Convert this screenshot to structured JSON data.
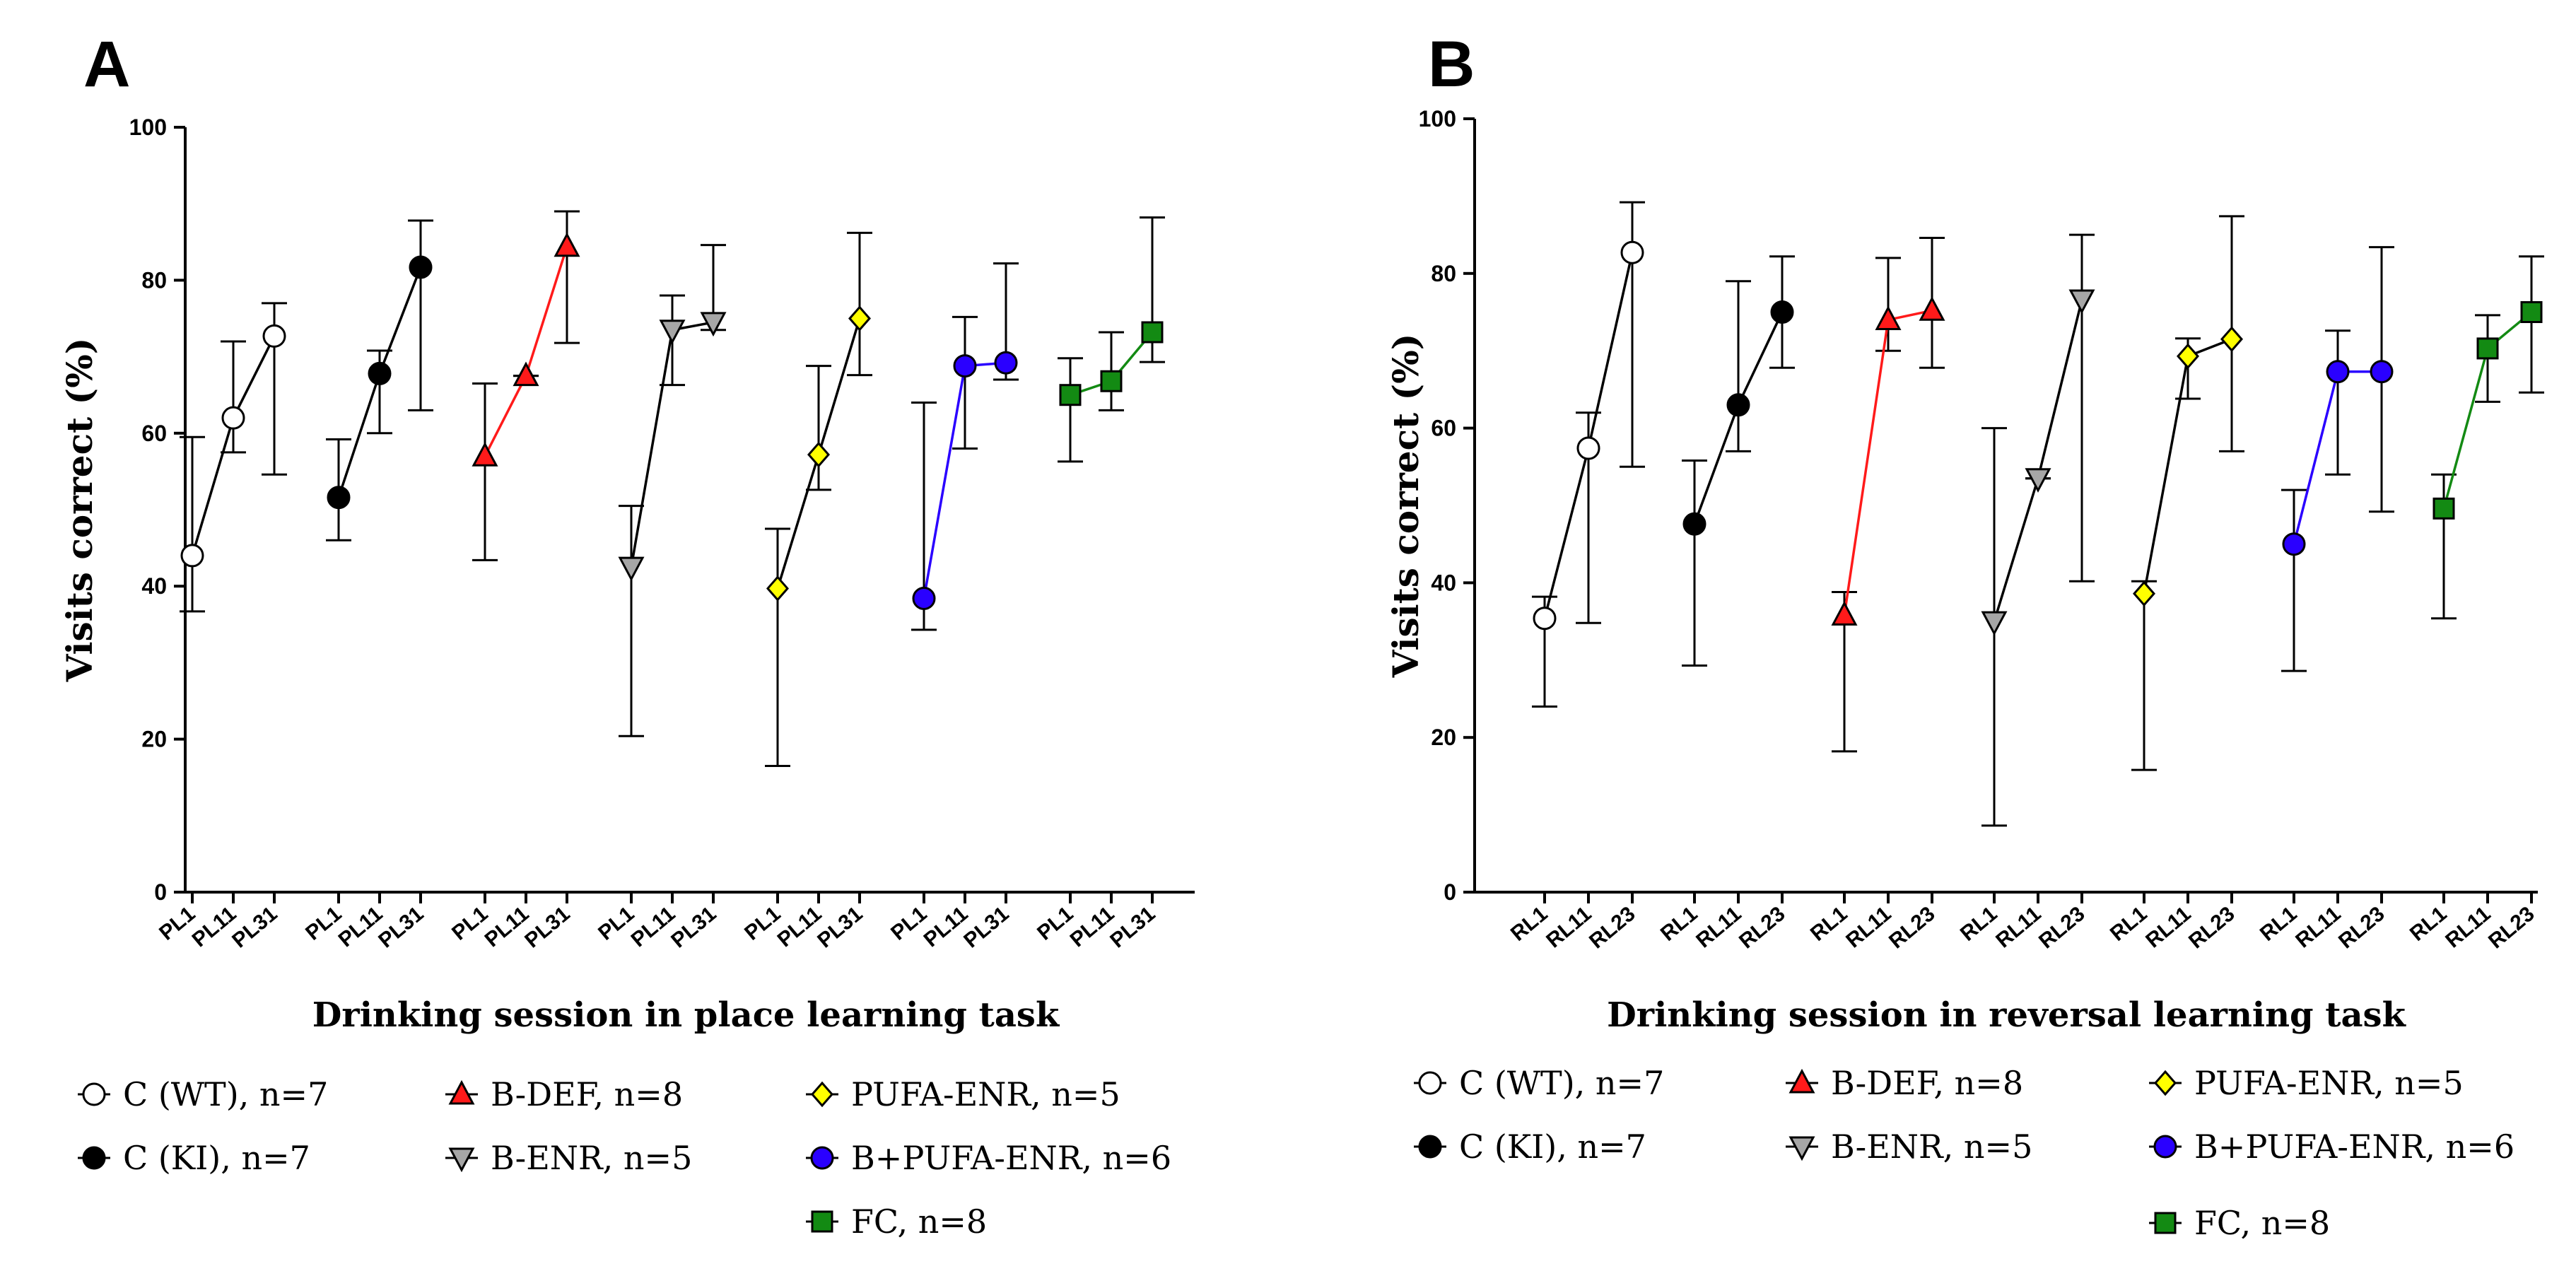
{
  "colors": {
    "C (WT)": "#ffffff",
    "C (KI)": "#000000",
    "B-DEF": "#ff1a1a",
    "B-ENR": "#a6a6a6",
    "PUFA-ENR": "#ffff00",
    "B+PUFA-ENR": "#2a00ff",
    "FC": "#138a13",
    "line_default": "#000000",
    "line_B-DEF": "#ff1a1a",
    "line_B+PUFA-ENR": "#2a00ff",
    "line_FC": "#138a13"
  },
  "chart_data": [
    {
      "panel": "A",
      "type": "line",
      "ylabel": "Visits correct (%)",
      "xlabel": "Drinking session in place learning task",
      "ylim": [
        0,
        100
      ],
      "yticks": [
        "0",
        "20",
        "40",
        "60",
        "80",
        "100"
      ],
      "session_labels": [
        "PL1",
        "PL11",
        "PL31"
      ],
      "series": [
        {
          "name": "C (WT)",
          "legend": "C (WT), n=7",
          "marker": "circle-open",
          "mean": [
            44,
            62,
            72.7
          ],
          "low": [
            36.7,
            57.5,
            54.6
          ],
          "high": [
            59.5,
            72,
            77
          ]
        },
        {
          "name": "C (KI)",
          "legend": "C (KI), n=7",
          "marker": "circle",
          "mean": [
            51.6,
            67.8,
            81.7
          ],
          "low": [
            46,
            60,
            63
          ],
          "high": [
            59.2,
            70.8,
            87.8
          ]
        },
        {
          "name": "B-DEF",
          "legend": "B-DEF, n=8",
          "marker": "triangle-up",
          "mean": [
            57,
            67.5,
            84.4
          ],
          "low": [
            43.4,
            67.5,
            71.8
          ],
          "high": [
            66.5,
            67.5,
            89
          ]
        },
        {
          "name": "B-ENR",
          "legend": "B-ENR, n=5",
          "marker": "triangle-down",
          "mean": [
            42.5,
            73.5,
            74.5
          ],
          "low": [
            20.4,
            66.3,
            73.5
          ],
          "high": [
            50.5,
            78,
            84.6
          ]
        },
        {
          "name": "PUFA-ENR",
          "legend": "PUFA-ENR, n=5",
          "marker": "diamond",
          "mean": [
            39.7,
            57.2,
            75
          ],
          "low": [
            16.5,
            52.6,
            67.6
          ],
          "high": [
            47.5,
            68.8,
            86.2
          ]
        },
        {
          "name": "B+PUFA-ENR",
          "legend": "B+PUFA-ENR, n=6",
          "marker": "circle",
          "mean": [
            38.4,
            68.8,
            69.2
          ],
          "low": [
            34.3,
            58,
            67
          ],
          "high": [
            64,
            75.2,
            82.2
          ]
        },
        {
          "name": "FC",
          "legend": "FC, n=8",
          "marker": "square",
          "mean": [
            65,
            66.8,
            73.2
          ],
          "low": [
            56.3,
            63,
            69.3
          ],
          "high": [
            69.8,
            73.2,
            88.2
          ]
        }
      ]
    },
    {
      "panel": "B",
      "type": "line",
      "ylabel": "Visits correct (%)",
      "xlabel": "Drinking session in reversal learning task",
      "ylim": [
        0,
        100
      ],
      "yticks": [
        "0",
        "20",
        "40",
        "60",
        "80",
        "100"
      ],
      "session_labels": [
        "RL1",
        "RL11",
        "RL23"
      ],
      "series": [
        {
          "name": "C (WT)",
          "legend": "C (WT), n=7",
          "marker": "circle-open",
          "mean": [
            35.4,
            57.4,
            82.7
          ],
          "low": [
            24,
            34.8,
            55
          ],
          "high": [
            38.2,
            62,
            89.2
          ]
        },
        {
          "name": "C (KI)",
          "legend": "C (KI), n=7",
          "marker": "circle",
          "mean": [
            47.6,
            63,
            75
          ],
          "low": [
            29.3,
            57,
            67.8
          ],
          "high": [
            55.8,
            79,
            82.2
          ]
        },
        {
          "name": "B-DEF",
          "legend": "B-DEF, n=8",
          "marker": "triangle-up",
          "mean": [
            35.8,
            74,
            75.2
          ],
          "low": [
            18.2,
            70,
            67.8
          ],
          "high": [
            38.8,
            82,
            84.6
          ]
        },
        {
          "name": "B-ENR",
          "legend": "B-ENR, n=5",
          "marker": "triangle-down",
          "mean": [
            35,
            53.5,
            76.6
          ],
          "low": [
            8.6,
            53.5,
            40.2
          ],
          "high": [
            60,
            53.5,
            85
          ]
        },
        {
          "name": "PUFA-ENR",
          "legend": "PUFA-ENR, n=5",
          "marker": "diamond",
          "mean": [
            38.6,
            69.3,
            71.5
          ],
          "low": [
            15.8,
            63.8,
            57
          ],
          "high": [
            40.2,
            71.6,
            87.4
          ]
        },
        {
          "name": "B+PUFA-ENR",
          "legend": "B+PUFA-ENR, n=6",
          "marker": "circle",
          "mean": [
            45,
            67.3,
            67.3
          ],
          "low": [
            28.6,
            54,
            49.2
          ],
          "high": [
            52,
            72.6,
            83.4
          ]
        },
        {
          "name": "FC",
          "legend": "FC, n=8",
          "marker": "square",
          "mean": [
            49.6,
            70.3,
            75
          ],
          "low": [
            35.4,
            63.4,
            64.6
          ],
          "high": [
            54,
            74.6,
            82.2
          ]
        }
      ]
    }
  ]
}
